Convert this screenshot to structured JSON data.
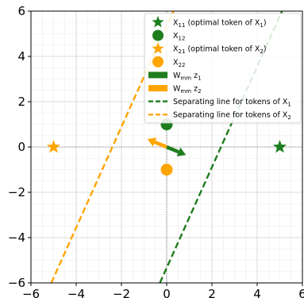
{
  "chart_data": {
    "type": "scatter",
    "xlim": [
      -6,
      6
    ],
    "ylim": [
      -6,
      6
    ],
    "xticks": [
      "−6",
      "−4",
      "−2",
      "0",
      "2",
      "4",
      "6"
    ],
    "yticks": [
      "6",
      "4",
      "2",
      "0",
      "−2",
      "−4",
      "−6"
    ],
    "grid": true,
    "minor_grid": true,
    "reference_lines": [
      "x=0",
      "y=0"
    ],
    "legend_position": "upper-right",
    "points": [
      {
        "label": "X₁₁ (optimal token of X₁)",
        "x": 5,
        "y": 0,
        "marker": "star",
        "color": "#1e7d1e"
      },
      {
        "label": "X₁₂",
        "x": 0,
        "y": 1,
        "marker": "circle",
        "color": "#1e7d1e"
      },
      {
        "label": "X₂₁ (optimal token of X₂)",
        "x": -5,
        "y": 0,
        "marker": "star",
        "color": "#ffa500"
      },
      {
        "label": "X₂₂",
        "x": 0,
        "y": -1,
        "marker": "circle",
        "color": "#ffa500"
      }
    ],
    "arrows": [
      {
        "label": "W_mm z₁",
        "x0": 0,
        "y0": 0,
        "dx": 0.85,
        "dy": -0.35,
        "color": "#1e7d1e"
      },
      {
        "label": "W_mm z₂",
        "x0": 0,
        "y0": 0,
        "dx": -0.85,
        "dy": 0.35,
        "color": "#ffa500"
      }
    ],
    "lines": [
      {
        "label": "Separating line for tokens of X₁",
        "color": "#1e7d1e",
        "style": "dashed",
        "from": [
          -0.3,
          -6
        ],
        "to": [
          5.1,
          6
        ]
      },
      {
        "label": "Separating line for tokens of X₂",
        "color": "#ffa500",
        "style": "dashed",
        "from": [
          -5.1,
          -6
        ],
        "to": [
          0.3,
          6
        ]
      }
    ]
  },
  "legend": {
    "items": [
      {
        "marker": "star",
        "color": "#1e7d1e",
        "main": "X",
        "sub": "11",
        "rest": " (optimal token of X",
        "rest_sub": "1",
        "tail": ")"
      },
      {
        "marker": "circle",
        "color": "#1e7d1e",
        "main": "X",
        "sub": "12",
        "rest": "",
        "rest_sub": "",
        "tail": ""
      },
      {
        "marker": "star",
        "color": "#ffa500",
        "main": "X",
        "sub": "21",
        "rest": " (optimal token of X",
        "rest_sub": "2",
        "tail": ")"
      },
      {
        "marker": "circle",
        "color": "#ffa500",
        "main": "X",
        "sub": "22",
        "rest": "",
        "rest_sub": "",
        "tail": ""
      },
      {
        "marker": "bar",
        "color": "#1e7d1e",
        "main": "W",
        "sub": "mm",
        "rest": " z",
        "rest_sub": "1",
        "tail": ""
      },
      {
        "marker": "bar",
        "color": "#ffa500",
        "main": "W",
        "sub": "mm",
        "rest": " z",
        "rest_sub": "2",
        "tail": ""
      },
      {
        "marker": "dash",
        "color": "#1e7d1e",
        "main": "Separating line for tokens of X",
        "sub": "1",
        "rest": "",
        "rest_sub": "",
        "tail": ""
      },
      {
        "marker": "dash",
        "color": "#ffa500",
        "main": "Separating line for tokens of X",
        "sub": "2",
        "rest": "",
        "rest_sub": "",
        "tail": ""
      }
    ]
  }
}
